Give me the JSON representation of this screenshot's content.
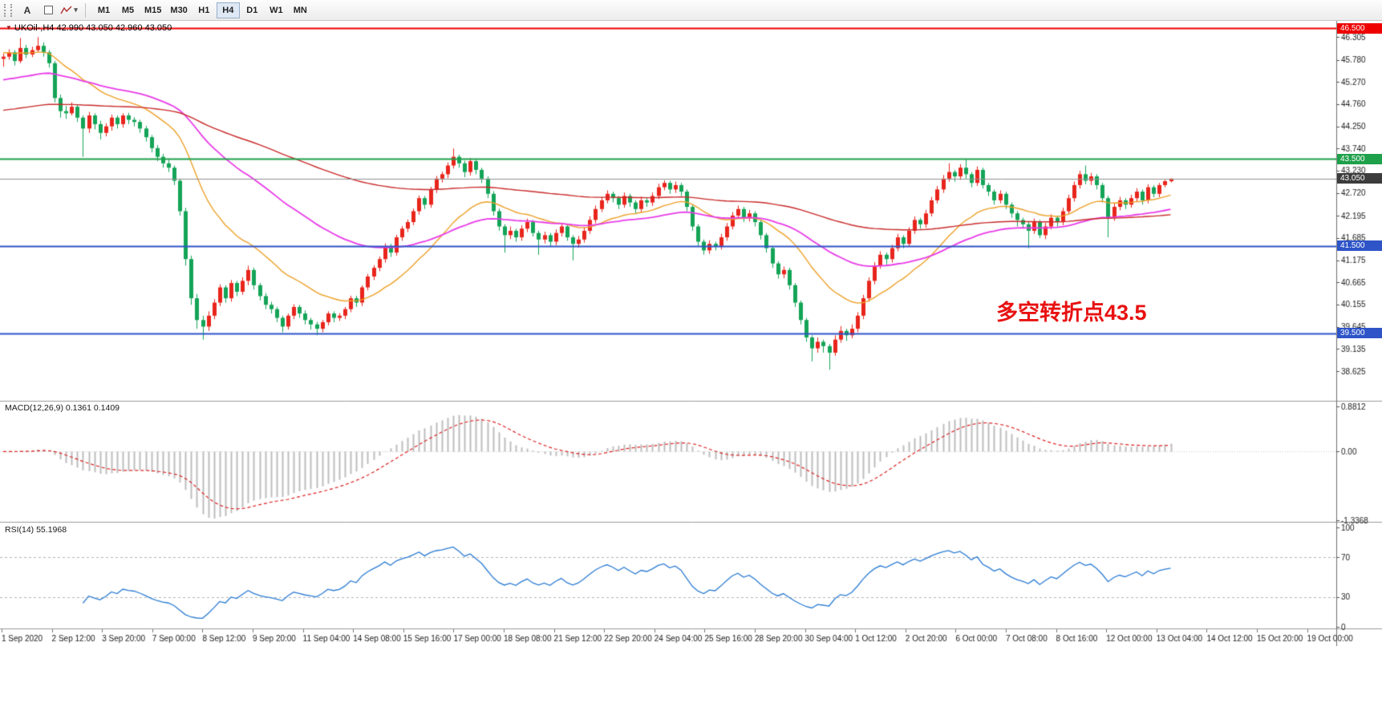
{
  "toolbar": {
    "tools": [
      {
        "name": "text-tool",
        "label": "A"
      },
      {
        "name": "frame-tool",
        "label": ""
      },
      {
        "name": "polyline-tool",
        "label": ""
      }
    ],
    "caret_glyph": "▾",
    "timeframes": [
      {
        "label": "M1"
      },
      {
        "label": "M5"
      },
      {
        "label": "M15"
      },
      {
        "label": "M30"
      },
      {
        "label": "H1"
      },
      {
        "label": "H4",
        "active": true
      },
      {
        "label": "D1"
      },
      {
        "label": "W1"
      },
      {
        "label": "MN"
      }
    ]
  },
  "chart_meta": {
    "collapse_glyph": "▼",
    "title": "UKOil-,H4 42.990 43.050 42.960 43.050",
    "symbol": "UKOil-",
    "period": "H4",
    "open": "42.990",
    "high": "43.050",
    "low": "42.960",
    "close": "43.050"
  },
  "annotation": {
    "text": "多空转折点43.5",
    "color": "#e81111"
  },
  "axis": {
    "price_labels": [
      "46.305",
      "45.780",
      "45.270",
      "44.760",
      "44.250",
      "43.740",
      "43.230",
      "42.720",
      "42.195",
      "41.685",
      "41.175",
      "40.665",
      "40.155",
      "39.645",
      "39.135",
      "38.625"
    ],
    "price_tags": [
      {
        "text": "46.500",
        "price": 46.5,
        "bg": "#ee0000"
      },
      {
        "text": "43.500",
        "price": 43.5,
        "bg": "#1fa04a"
      },
      {
        "text": "43.050",
        "price": 43.05,
        "bg": "#3c3c3c"
      },
      {
        "text": "41.500",
        "price": 41.5,
        "bg": "#2e54c8"
      },
      {
        "text": "39.500",
        "price": 39.5,
        "bg": "#2e54c8"
      }
    ],
    "time_labels": [
      "1 Sep 2020",
      "2 Sep 12:00",
      "3 Sep 20:00",
      "7 Sep 00:00",
      "8 Sep 12:00",
      "9 Sep 20:00",
      "11 Sep 04:00",
      "14 Sep 08:00",
      "15 Sep 16:00",
      "17 Sep 00:00",
      "18 Sep 08:00",
      "21 Sep 12:00",
      "22 Sep 20:00",
      "24 Sep 04:00",
      "25 Sep 16:00",
      "28 Sep 20:00",
      "30 Sep 04:00",
      "1 Oct 12:00",
      "2 Oct 20:00",
      "6 Oct 00:00",
      "7 Oct 08:00",
      "8 Oct 16:00",
      "12 Oct 00:00",
      "13 Oct 04:00",
      "14 Oct 12:00",
      "15 Oct 20:00",
      "19 Oct 00:00"
    ]
  },
  "indicators": {
    "macd": {
      "label": "MACD(12,26,9) 0.1361 0.1409",
      "fast": 12,
      "slow": 26,
      "signal_period": 9,
      "ylim": [
        -1.3368,
        0.8812
      ],
      "axis_labels": [
        {
          "text": "0.8812",
          "value": 0.8812
        },
        {
          "text": "0.00",
          "value": 0
        },
        {
          "text": "-1.3368",
          "value": -1.3368
        }
      ],
      "histogram_color": "#bdbdbd",
      "signal_color": "#dd2222"
    },
    "rsi": {
      "label": "RSI(14) 55.1968",
      "period": 14,
      "ylim": [
        0,
        100
      ],
      "levels": [
        70,
        30
      ],
      "axis_labels": [
        {
          "text": "100",
          "value": 100
        },
        {
          "text": "70",
          "value": 70
        },
        {
          "text": "30",
          "value": 30
        },
        {
          "text": "0",
          "value": 0
        }
      ],
      "line_color": "#2b7cd3",
      "level_color": "#b5b5b5"
    }
  },
  "chart_data": {
    "type": "candlestick",
    "title": "UKOil-,H4",
    "ylim": [
      38.0,
      46.6
    ],
    "bull_color": "#e8251c",
    "bear_color": "#14a457",
    "current_price": 43.05,
    "current_price_line_color": "#909090",
    "levels": [
      {
        "price": 46.5,
        "color": "#ee0000",
        "width": 2
      },
      {
        "price": 43.5,
        "color": "#1fa04a",
        "width": 2
      },
      {
        "price": 41.5,
        "color": "#2e54c8",
        "width": 2
      },
      {
        "price": 39.5,
        "color": "#2e54c8",
        "width": 2
      }
    ],
    "moving_averages": [
      {
        "period": 21,
        "color": "#eda128",
        "width": 1.4,
        "seed": 45.95
      },
      {
        "period": 55,
        "color": "#e83ce8",
        "width": 1.8,
        "seed": 45.3
      },
      {
        "period": 144,
        "color": "#c92a2a",
        "width": 1.4,
        "seed": 44.6
      }
    ],
    "candles": [
      [
        45.8,
        45.92,
        45.62,
        45.85
      ],
      [
        45.85,
        46.02,
        45.78,
        45.95
      ],
      [
        45.95,
        46.0,
        45.65,
        45.75
      ],
      [
        45.75,
        46.28,
        45.7,
        46.05
      ],
      [
        46.05,
        46.12,
        45.82,
        45.9
      ],
      [
        45.9,
        46.08,
        45.84,
        46.0
      ],
      [
        46.0,
        46.3,
        45.95,
        46.1
      ],
      [
        46.1,
        46.18,
        45.85,
        45.95
      ],
      [
        45.95,
        46.0,
        45.6,
        45.7
      ],
      [
        45.7,
        45.75,
        44.8,
        44.9
      ],
      [
        44.9,
        44.98,
        44.45,
        44.6
      ],
      [
        44.6,
        44.72,
        44.42,
        44.55
      ],
      [
        44.55,
        44.8,
        44.5,
        44.7
      ],
      [
        44.7,
        44.75,
        44.35,
        44.45
      ],
      [
        44.45,
        44.5,
        43.55,
        44.2
      ],
      [
        44.2,
        44.58,
        44.1,
        44.5
      ],
      [
        44.5,
        44.55,
        44.18,
        44.3
      ],
      [
        44.3,
        44.38,
        43.95,
        44.1
      ],
      [
        44.1,
        44.32,
        44.02,
        44.25
      ],
      [
        44.25,
        44.52,
        44.15,
        44.45
      ],
      [
        44.45,
        44.5,
        44.2,
        44.3
      ],
      [
        44.3,
        44.55,
        44.22,
        44.5
      ],
      [
        44.5,
        44.56,
        44.3,
        44.4
      ],
      [
        44.4,
        44.46,
        44.25,
        44.35
      ],
      [
        44.35,
        44.4,
        44.1,
        44.2
      ],
      [
        44.2,
        44.26,
        43.9,
        44.0
      ],
      [
        44.0,
        44.05,
        43.65,
        43.75
      ],
      [
        43.75,
        43.82,
        43.45,
        43.55
      ],
      [
        43.55,
        43.62,
        43.3,
        43.4
      ],
      [
        43.4,
        43.48,
        43.2,
        43.3
      ],
      [
        43.3,
        43.35,
        42.9,
        43.0
      ],
      [
        43.0,
        43.05,
        42.2,
        42.3
      ],
      [
        42.3,
        42.38,
        41.05,
        41.2
      ],
      [
        41.2,
        41.28,
        40.15,
        40.3
      ],
      [
        40.3,
        40.4,
        39.6,
        39.8
      ],
      [
        39.8,
        39.9,
        39.35,
        39.65
      ],
      [
        39.65,
        40.0,
        39.55,
        39.9
      ],
      [
        39.9,
        40.28,
        39.82,
        40.2
      ],
      [
        40.2,
        40.62,
        40.12,
        40.55
      ],
      [
        40.55,
        40.6,
        40.2,
        40.3
      ],
      [
        40.3,
        40.72,
        40.22,
        40.65
      ],
      [
        40.65,
        40.7,
        40.35,
        40.45
      ],
      [
        40.45,
        40.78,
        40.38,
        40.7
      ],
      [
        40.7,
        41.05,
        40.6,
        40.95
      ],
      [
        40.95,
        41.0,
        40.5,
        40.6
      ],
      [
        40.6,
        40.65,
        40.25,
        40.35
      ],
      [
        40.35,
        40.42,
        40.05,
        40.15
      ],
      [
        40.15,
        40.22,
        39.95,
        40.05
      ],
      [
        40.05,
        40.1,
        39.75,
        39.85
      ],
      [
        39.85,
        39.9,
        39.52,
        39.65
      ],
      [
        39.65,
        39.95,
        39.58,
        39.9
      ],
      [
        39.9,
        40.16,
        39.82,
        40.1
      ],
      [
        40.1,
        40.15,
        39.85,
        39.95
      ],
      [
        39.95,
        40.02,
        39.7,
        39.8
      ],
      [
        39.8,
        39.85,
        39.58,
        39.7
      ],
      [
        39.7,
        39.76,
        39.45,
        39.6
      ],
      [
        39.6,
        39.8,
        39.52,
        39.75
      ],
      [
        39.75,
        40.0,
        39.68,
        39.95
      ],
      [
        39.95,
        40.0,
        39.75,
        39.85
      ],
      [
        39.85,
        39.96,
        39.78,
        39.9
      ],
      [
        39.9,
        40.1,
        39.82,
        40.05
      ],
      [
        40.05,
        40.36,
        39.98,
        40.3
      ],
      [
        40.3,
        40.36,
        40.1,
        40.2
      ],
      [
        40.2,
        40.6,
        40.12,
        40.55
      ],
      [
        40.55,
        40.86,
        40.48,
        40.8
      ],
      [
        40.8,
        41.06,
        40.72,
        41.0
      ],
      [
        41.0,
        41.26,
        40.92,
        41.2
      ],
      [
        41.2,
        41.56,
        41.12,
        41.5
      ],
      [
        41.5,
        41.55,
        41.25,
        41.35
      ],
      [
        41.35,
        41.76,
        41.28,
        41.7
      ],
      [
        41.7,
        41.96,
        41.62,
        41.9
      ],
      [
        41.9,
        42.11,
        41.82,
        42.05
      ],
      [
        42.05,
        42.36,
        41.98,
        42.3
      ],
      [
        42.3,
        42.66,
        42.22,
        42.6
      ],
      [
        42.6,
        42.65,
        42.35,
        42.45
      ],
      [
        42.45,
        42.86,
        42.38,
        42.8
      ],
      [
        42.8,
        43.11,
        42.72,
        43.05
      ],
      [
        43.05,
        43.21,
        42.96,
        43.15
      ],
      [
        43.15,
        43.42,
        43.06,
        43.35
      ],
      [
        43.35,
        43.74,
        43.28,
        43.55
      ],
      [
        43.55,
        43.6,
        43.3,
        43.4
      ],
      [
        43.4,
        43.46,
        43.08,
        43.2
      ],
      [
        43.2,
        43.52,
        43.12,
        43.45
      ],
      [
        43.45,
        43.5,
        43.15,
        43.25
      ],
      [
        43.25,
        43.3,
        42.95,
        43.05
      ],
      [
        43.05,
        43.1,
        42.6,
        42.7
      ],
      [
        42.7,
        42.76,
        42.2,
        42.3
      ],
      [
        42.3,
        42.36,
        41.85,
        41.95
      ],
      [
        41.95,
        42.0,
        41.35,
        41.75
      ],
      [
        41.75,
        41.95,
        41.66,
        41.85
      ],
      [
        41.85,
        41.9,
        41.6,
        41.7
      ],
      [
        41.7,
        41.98,
        41.62,
        41.9
      ],
      [
        41.9,
        42.13,
        41.82,
        42.05
      ],
      [
        42.05,
        42.1,
        41.72,
        41.8
      ],
      [
        41.8,
        41.85,
        41.3,
        41.65
      ],
      [
        41.65,
        41.83,
        41.56,
        41.75
      ],
      [
        41.75,
        41.8,
        41.5,
        41.6
      ],
      [
        41.6,
        41.88,
        41.52,
        41.8
      ],
      [
        41.8,
        42.03,
        41.72,
        41.95
      ],
      [
        41.95,
        42.0,
        41.62,
        41.7
      ],
      [
        41.7,
        41.75,
        41.17,
        41.55
      ],
      [
        41.55,
        41.73,
        41.46,
        41.65
      ],
      [
        41.65,
        41.93,
        41.58,
        41.85
      ],
      [
        41.85,
        42.18,
        41.78,
        42.1
      ],
      [
        42.1,
        42.43,
        42.02,
        42.35
      ],
      [
        42.35,
        42.63,
        42.28,
        42.55
      ],
      [
        42.55,
        42.78,
        42.48,
        42.7
      ],
      [
        42.7,
        42.75,
        42.5,
        42.6
      ],
      [
        42.6,
        42.65,
        42.35,
        42.45
      ],
      [
        42.45,
        42.73,
        42.38,
        42.65
      ],
      [
        42.65,
        42.7,
        42.4,
        42.5
      ],
      [
        42.5,
        42.55,
        42.25,
        42.35
      ],
      [
        42.35,
        42.63,
        42.28,
        42.55
      ],
      [
        42.55,
        42.6,
        42.4,
        42.5
      ],
      [
        42.5,
        42.73,
        42.42,
        42.65
      ],
      [
        42.65,
        42.93,
        42.58,
        42.85
      ],
      [
        42.85,
        43.01,
        42.78,
        42.95
      ],
      [
        42.95,
        43.0,
        42.7,
        42.8
      ],
      [
        42.8,
        42.98,
        42.72,
        42.9
      ],
      [
        42.9,
        42.95,
        42.65,
        42.75
      ],
      [
        42.75,
        42.8,
        42.3,
        42.4
      ],
      [
        42.4,
        42.45,
        41.85,
        41.95
      ],
      [
        41.95,
        42.0,
        41.5,
        41.6
      ],
      [
        41.6,
        41.65,
        41.3,
        41.4
      ],
      [
        41.4,
        41.63,
        41.32,
        41.55
      ],
      [
        41.55,
        41.6,
        41.4,
        41.5
      ],
      [
        41.5,
        41.78,
        41.42,
        41.7
      ],
      [
        41.7,
        42.03,
        41.62,
        41.95
      ],
      [
        41.95,
        42.28,
        41.88,
        42.2
      ],
      [
        42.2,
        42.43,
        42.12,
        42.35
      ],
      [
        42.35,
        42.4,
        42.05,
        42.15
      ],
      [
        42.15,
        42.33,
        42.06,
        42.25
      ],
      [
        42.25,
        42.3,
        41.95,
        42.05
      ],
      [
        42.05,
        42.1,
        41.65,
        41.75
      ],
      [
        41.75,
        41.8,
        41.35,
        41.45
      ],
      [
        41.45,
        41.5,
        41.0,
        41.1
      ],
      [
        41.1,
        41.15,
        40.75,
        40.85
      ],
      [
        40.85,
        41.03,
        40.76,
        40.95
      ],
      [
        40.95,
        41.0,
        40.5,
        40.6
      ],
      [
        40.6,
        40.65,
        40.1,
        40.2
      ],
      [
        40.2,
        40.25,
        39.7,
        39.8
      ],
      [
        39.8,
        39.85,
        39.3,
        39.4
      ],
      [
        39.4,
        39.45,
        38.85,
        39.15
      ],
      [
        39.15,
        39.4,
        39.05,
        39.3
      ],
      [
        39.3,
        39.35,
        39.05,
        39.2
      ],
      [
        39.2,
        39.25,
        38.66,
        39.05
      ],
      [
        39.05,
        39.45,
        38.98,
        39.35
      ],
      [
        39.35,
        39.66,
        39.28,
        39.55
      ],
      [
        39.55,
        39.6,
        39.32,
        39.45
      ],
      [
        39.45,
        39.7,
        39.38,
        39.6
      ],
      [
        39.6,
        39.98,
        39.52,
        39.9
      ],
      [
        39.9,
        40.38,
        39.82,
        40.3
      ],
      [
        40.3,
        40.78,
        40.22,
        40.7
      ],
      [
        40.7,
        41.13,
        40.62,
        41.05
      ],
      [
        41.05,
        41.38,
        40.98,
        41.3
      ],
      [
        41.3,
        41.35,
        41.08,
        41.2
      ],
      [
        41.2,
        41.53,
        41.12,
        41.45
      ],
      [
        41.45,
        41.78,
        41.38,
        41.7
      ],
      [
        41.7,
        41.75,
        41.45,
        41.55
      ],
      [
        41.55,
        41.93,
        41.48,
        41.85
      ],
      [
        41.85,
        42.18,
        41.78,
        42.1
      ],
      [
        42.1,
        42.15,
        41.9,
        42.0
      ],
      [
        42.0,
        42.33,
        41.92,
        42.25
      ],
      [
        42.25,
        42.63,
        42.18,
        42.55
      ],
      [
        42.55,
        42.88,
        42.48,
        42.8
      ],
      [
        42.8,
        43.13,
        42.72,
        43.05
      ],
      [
        43.05,
        43.4,
        42.98,
        43.2
      ],
      [
        43.2,
        43.25,
        42.98,
        43.1
      ],
      [
        43.1,
        43.38,
        43.02,
        43.3
      ],
      [
        43.3,
        43.5,
        43.05,
        43.15
      ],
      [
        43.15,
        43.2,
        42.85,
        42.95
      ],
      [
        42.95,
        43.33,
        42.88,
        43.25
      ],
      [
        43.25,
        43.3,
        42.82,
        42.9
      ],
      [
        42.9,
        42.95,
        42.65,
        42.75
      ],
      [
        42.75,
        42.8,
        42.45,
        42.55
      ],
      [
        42.55,
        42.78,
        42.48,
        42.7
      ],
      [
        42.7,
        42.75,
        42.35,
        42.45
      ],
      [
        42.45,
        42.5,
        42.15,
        42.25
      ],
      [
        42.25,
        42.3,
        41.95,
        42.1
      ],
      [
        42.1,
        42.15,
        41.9,
        42.0
      ],
      [
        42.0,
        42.05,
        41.45,
        41.85
      ],
      [
        41.85,
        42.13,
        41.78,
        42.05
      ],
      [
        42.05,
        42.1,
        41.68,
        41.75
      ],
      [
        41.75,
        42.03,
        41.66,
        41.95
      ],
      [
        41.95,
        42.23,
        41.88,
        42.15
      ],
      [
        42.15,
        42.2,
        41.95,
        42.05
      ],
      [
        42.05,
        42.38,
        41.98,
        42.3
      ],
      [
        42.3,
        42.68,
        42.22,
        42.6
      ],
      [
        42.6,
        42.98,
        42.52,
        42.9
      ],
      [
        42.9,
        43.23,
        42.82,
        43.15
      ],
      [
        43.15,
        43.35,
        42.92,
        43.0
      ],
      [
        43.0,
        43.18,
        42.9,
        43.1
      ],
      [
        43.1,
        43.15,
        42.8,
        42.9
      ],
      [
        42.9,
        42.95,
        42.5,
        42.6
      ],
      [
        42.6,
        42.65,
        41.7,
        42.15
      ],
      [
        42.15,
        42.48,
        42.08,
        42.4
      ],
      [
        42.4,
        42.63,
        42.32,
        42.55
      ],
      [
        42.55,
        42.6,
        42.35,
        42.45
      ],
      [
        42.45,
        42.68,
        42.38,
        42.6
      ],
      [
        42.6,
        42.83,
        42.52,
        42.75
      ],
      [
        42.75,
        42.8,
        42.45,
        42.55
      ],
      [
        42.55,
        42.92,
        42.48,
        42.85
      ],
      [
        42.85,
        42.9,
        42.62,
        42.7
      ],
      [
        42.7,
        42.95,
        42.62,
        42.9
      ],
      [
        42.9,
        43.02,
        42.85,
        42.99
      ],
      [
        42.99,
        43.05,
        42.96,
        43.05
      ]
    ]
  }
}
